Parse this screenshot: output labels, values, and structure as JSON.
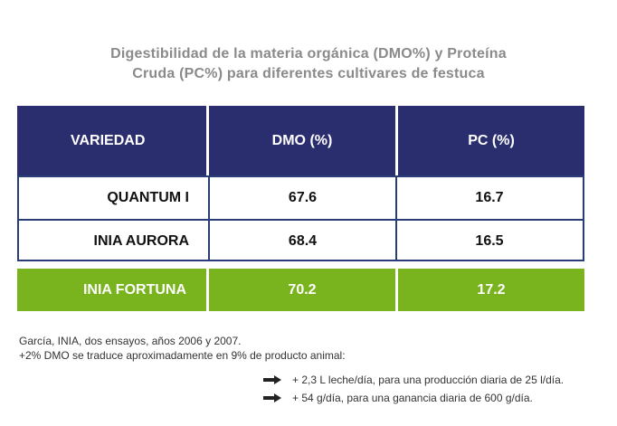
{
  "title": {
    "line1": "Digestibilidad de la materia orgánica (DMO%) y Proteína",
    "line2": "Cruda (PC%) para diferentes cultivares de festuca"
  },
  "table": {
    "headers": [
      "VARIEDAD",
      "DMO (%)",
      "PC (%)"
    ],
    "rows": [
      {
        "variedad": "QUANTUM I",
        "dmo": "67.6",
        "pc": "16.7"
      },
      {
        "variedad": "INIA AURORA",
        "dmo": "68.4",
        "pc": "16.5"
      },
      {
        "variedad": "INIA FORTUNA",
        "dmo": "70.2",
        "pc": "17.2"
      }
    ]
  },
  "notes": {
    "source": "García, INIA, dos ensayos, años 2006 y 2007.",
    "dmo_note": "+2% DMO se traduce aproximadamente en 9% de producto animal:",
    "bullets": [
      "+ 2,3 L leche/día, para una producción diaria de 25 l/día.",
      "+ 54 g/día, para una ganancia diaria de 600 g/día."
    ]
  },
  "colors": {
    "header_bg": "#2a2e6e",
    "border": "#2a3d79",
    "highlight_bg": "#79b41e",
    "title_text": "#8a8a8a"
  }
}
